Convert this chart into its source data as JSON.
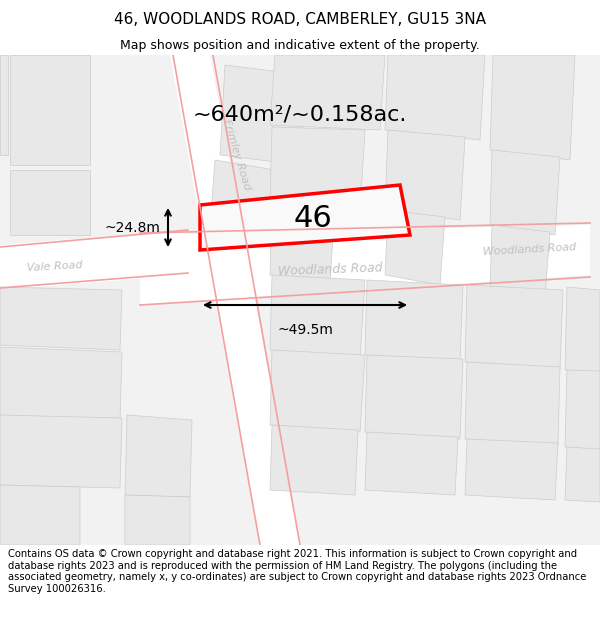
{
  "title": "46, WOODLANDS ROAD, CAMBERLEY, GU15 3NA",
  "subtitle": "Map shows position and indicative extent of the property.",
  "footer": "Contains OS data © Crown copyright and database right 2021. This information is subject to Crown copyright and database rights 2023 and is reproduced with the permission of HM Land Registry. The polygons (including the associated geometry, namely x, y co-ordinates) are subject to Crown copyright and database rights 2023 Ordnance Survey 100026316.",
  "area_label": "~640m²/~0.158ac.",
  "number_label": "46",
  "dim_width": "~49.5m",
  "dim_height": "~24.8m",
  "road_label_main": "Woodlands Road",
  "road_label_frimley": "Frimley Road",
  "road_label_vale": "Vale Road",
  "road_label_woodlands_right": "Woodlands Road",
  "bg_color": "#f5f5f5",
  "map_bg": "#f0f0f0",
  "road_bg": "#ffffff",
  "block_color": "#e8e8e8",
  "block_edge": "#cccccc",
  "road_line_color": "#f4a0a0",
  "highlight_color": "#ff0000",
  "text_color": "#000000",
  "dim_line_color": "#000000",
  "title_fontsize": 11,
  "subtitle_fontsize": 9,
  "footer_fontsize": 7.2
}
